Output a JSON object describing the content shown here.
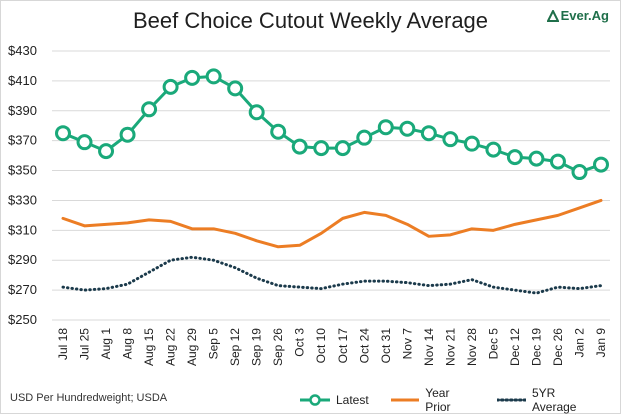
{
  "header": {
    "title": "Beef Choice Cutout Weekly Average",
    "logo_text": "Ever.Ag",
    "logo_color": "#1f6f4a"
  },
  "footer": {
    "source": "USD Per Hundredweight; USDA"
  },
  "legend": {
    "latest": "Latest",
    "year_prior": "Year Prior",
    "five_yr": "5YR Average"
  },
  "colors": {
    "latest": "#1aa97a",
    "year_prior": "#ec7d24",
    "five_yr": "#1b3a4b",
    "grid": "#d9d9d9"
  },
  "chart_data": {
    "type": "line",
    "title": "Beef Choice Cutout Weekly Average",
    "ylabel": "",
    "ylim": [
      250,
      430
    ],
    "yticks": [
      250,
      270,
      290,
      310,
      330,
      350,
      370,
      390,
      410,
      430
    ],
    "ytick_labels": [
      "$250",
      "$270",
      "$290",
      "$310",
      "$330",
      "$350",
      "$370",
      "$390",
      "$410",
      "$430"
    ],
    "grid": true,
    "legend_position": "bottom",
    "categories": [
      "Jul 18",
      "Jul 25",
      "Aug 1",
      "Aug 8",
      "Aug 15",
      "Aug 22",
      "Aug 29",
      "Sep 5",
      "Sep 12",
      "Sep 19",
      "Sep 26",
      "Oct 3",
      "Oct 10",
      "Oct 17",
      "Oct 24",
      "Oct 31",
      "Nov 7",
      "Nov 14",
      "Nov 21",
      "Nov 28",
      "Dec 5",
      "Dec 12",
      "Dec 19",
      "Dec 26",
      "Jan 2",
      "Jan 9"
    ],
    "series": [
      {
        "name": "Latest",
        "style": "line-markers",
        "values": [
          375,
          369,
          363,
          374,
          391,
          406,
          412,
          413,
          405,
          389,
          376,
          366,
          365,
          365,
          372,
          379,
          378,
          375,
          371,
          368,
          364,
          359,
          358,
          356,
          349,
          354
        ]
      },
      {
        "name": "Year Prior",
        "style": "line",
        "values": [
          318,
          313,
          314,
          315,
          317,
          316,
          311,
          311,
          308,
          303,
          299,
          300,
          308,
          318,
          322,
          320,
          314,
          306,
          307,
          311,
          310,
          314,
          317,
          320,
          325,
          330
        ]
      },
      {
        "name": "5YR Average",
        "style": "dotted",
        "values": [
          272,
          270,
          271,
          274,
          282,
          290,
          292,
          290,
          285,
          278,
          273,
          272,
          271,
          274,
          276,
          276,
          275,
          273,
          274,
          277,
          272,
          270,
          268,
          272,
          271,
          273
        ]
      }
    ]
  }
}
